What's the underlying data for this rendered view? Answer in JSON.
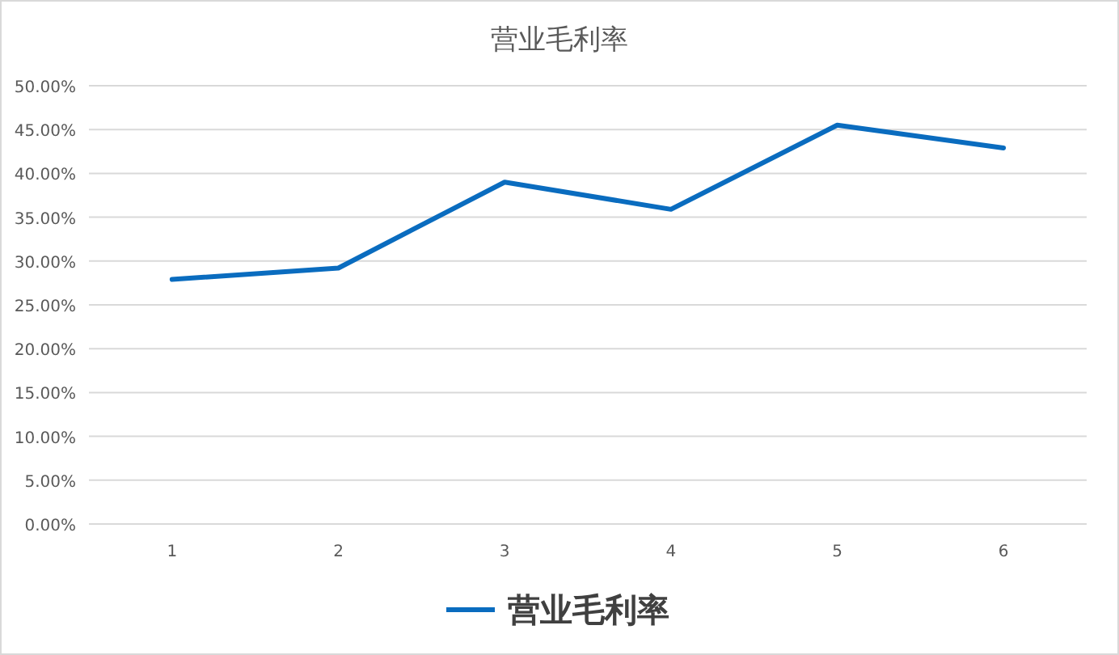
{
  "chart_data": {
    "type": "line",
    "title": "营业毛利率",
    "categories": [
      "1",
      "2",
      "3",
      "4",
      "5",
      "6"
    ],
    "series": [
      {
        "name": "营业毛利率",
        "color": "#0a6cbf",
        "values": [
          27.9,
          29.2,
          39.0,
          35.9,
          45.5,
          42.9
        ]
      }
    ],
    "ylim": [
      0,
      50
    ],
    "yticks": [
      {
        "value": 0,
        "label": "0.00%"
      },
      {
        "value": 5,
        "label": "5.00%"
      },
      {
        "value": 10,
        "label": "10.00%"
      },
      {
        "value": 15,
        "label": "15.00%"
      },
      {
        "value": 20,
        "label": "20.00%"
      },
      {
        "value": 25,
        "label": "25.00%"
      },
      {
        "value": 30,
        "label": "30.00%"
      },
      {
        "value": 35,
        "label": "35.00%"
      },
      {
        "value": 40,
        "label": "40.00%"
      },
      {
        "value": 45,
        "label": "45.00%"
      },
      {
        "value": 50,
        "label": "50.00%"
      }
    ],
    "grid": "y",
    "legend": "bottom",
    "marker": "none",
    "line_style": "solid"
  }
}
